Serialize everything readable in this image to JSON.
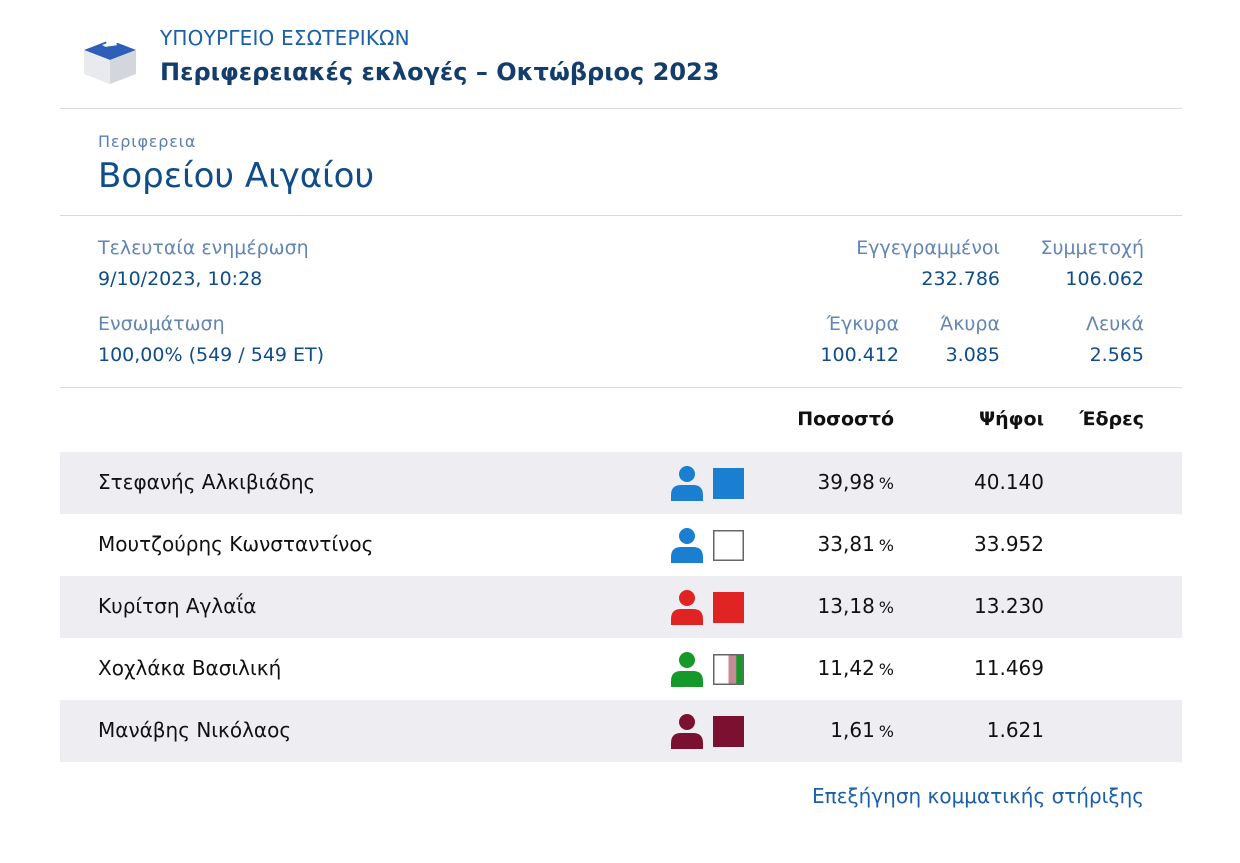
{
  "header": {
    "ministry": "ΥΠΟΥΡΓΕΙΟ ΕΣΩΤΕΡΙΚΩΝ",
    "title": "Περιφερειακές εκλογές – Οκτώβριος 2023",
    "logo_icon": "ballot-box-icon"
  },
  "region": {
    "label": "Περιφερεια",
    "name": "Βορείου Αιγαίου"
  },
  "stats": {
    "last_update_label": "Τελευταία ενημέρωση",
    "last_update_value": "9/10/2023, 10:28",
    "incorporation_label": "Ενσωμάτωση",
    "incorporation_value": "100,00% (549 / 549 ΕΤ)",
    "registered_label": "Εγγεγραμμένοι",
    "registered_value": "232.786",
    "turnout_label": "Συμμετοχή",
    "turnout_value": "106.062",
    "valid_label": "Έγκυρα",
    "valid_value": "100.412",
    "invalid_label": "Άκυρα",
    "invalid_value": "3.085",
    "blank_label": "Λευκά",
    "blank_value": "2.565"
  },
  "table": {
    "headers": {
      "percent": "Ποσοστό",
      "votes": "Ψήφοι",
      "seats": "Έδρες"
    },
    "percent_unit": "%",
    "rows": [
      {
        "name": "Στεφανής Αλκιβιάδης",
        "percent": "39,98",
        "votes": "40.140",
        "seats": "",
        "person_color": "#1a7fd0",
        "swatch": [
          "#1a7fd0"
        ],
        "swatch_border": false
      },
      {
        "name": "Μουτζούρης Κωνσταντίνος",
        "percent": "33,81",
        "votes": "33.952",
        "seats": "",
        "person_color": "#1a7fd0",
        "swatch": [
          "#ffffff"
        ],
        "swatch_border": true
      },
      {
        "name": "Κυρίτση Αγλαΐα",
        "percent": "13,18",
        "votes": "13.230",
        "seats": "",
        "person_color": "#e02424",
        "swatch": [
          "#e02424"
        ],
        "swatch_border": false
      },
      {
        "name": "Χοχλάκα Βασιλική",
        "percent": "11,42",
        "votes": "11.469",
        "seats": "",
        "person_color": "#159a2a",
        "swatch": [
          "#ffffff",
          "#ffffff",
          "#c48a96",
          "#159a2a"
        ],
        "swatch_border": true
      },
      {
        "name": "Μανάβης Νικόλαος",
        "percent": "1,61",
        "votes": "1.621",
        "seats": "",
        "person_color": "#7c1030",
        "swatch": [
          "#7c1030"
        ],
        "swatch_border": false
      }
    ]
  },
  "footer": {
    "link": "Επεξήγηση κομματικής στήριξης"
  }
}
